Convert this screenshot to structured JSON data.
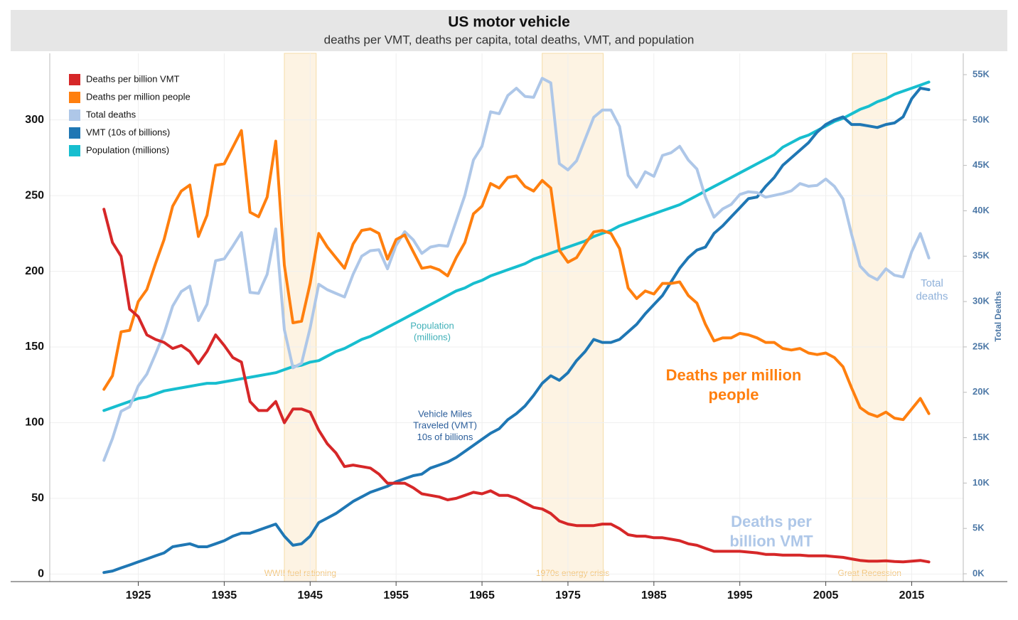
{
  "chart_data": {
    "type": "line",
    "title": "US motor vehicle",
    "subtitle": "deaths per VMT, deaths per capita, total deaths, VMT, and population",
    "y2_label": "Total Deaths",
    "x": [
      1921,
      1922,
      1923,
      1924,
      1925,
      1926,
      1927,
      1928,
      1929,
      1930,
      1931,
      1932,
      1933,
      1934,
      1935,
      1936,
      1937,
      1938,
      1939,
      1940,
      1941,
      1942,
      1943,
      1944,
      1945,
      1946,
      1947,
      1948,
      1949,
      1950,
      1951,
      1952,
      1953,
      1954,
      1955,
      1956,
      1957,
      1958,
      1959,
      1960,
      1961,
      1962,
      1963,
      1964,
      1965,
      1966,
      1967,
      1968,
      1969,
      1970,
      1971,
      1972,
      1973,
      1974,
      1975,
      1976,
      1977,
      1978,
      1979,
      1980,
      1981,
      1982,
      1983,
      1984,
      1985,
      1986,
      1987,
      1988,
      1989,
      1990,
      1991,
      1992,
      1993,
      1994,
      1995,
      1996,
      1997,
      1998,
      1999,
      2000,
      2001,
      2002,
      2003,
      2004,
      2005,
      2006,
      2007,
      2008,
      2009,
      2010,
      2011,
      2012,
      2013,
      2014,
      2015,
      2016,
      2017
    ],
    "xlim": [
      1914.7,
      2021
    ],
    "xticks": [
      1925,
      1935,
      1945,
      1955,
      1965,
      1975,
      1985,
      1995,
      2005,
      2015
    ],
    "ylim": [
      -5,
      344
    ],
    "yticks": [
      0,
      50,
      100,
      150,
      200,
      250,
      300
    ],
    "y2lim": [
      -860,
      57350
    ],
    "y2ticks": [
      {
        "value": 0,
        "label": "0K"
      },
      {
        "value": 5000,
        "label": "5K"
      },
      {
        "value": 10000,
        "label": "10K"
      },
      {
        "value": 15000,
        "label": "15K"
      },
      {
        "value": 20000,
        "label": "20K"
      },
      {
        "value": 25000,
        "label": "25K"
      },
      {
        "value": 30000,
        "label": "30K"
      },
      {
        "value": 35000,
        "label": "35K"
      },
      {
        "value": 40000,
        "label": "40K"
      },
      {
        "value": 45000,
        "label": "45K"
      },
      {
        "value": 50000,
        "label": "50K"
      },
      {
        "value": 55000,
        "label": "55K"
      }
    ],
    "grid": true,
    "legend": "upper left",
    "series": [
      {
        "name": "Deaths per billion VMT",
        "color": "#d62728",
        "values": [
          241,
          219,
          210,
          175,
          170,
          158,
          155,
          153,
          149,
          151,
          147,
          139,
          147,
          158,
          151,
          143,
          140,
          114,
          108,
          108,
          114,
          100,
          109,
          109,
          107,
          95,
          86,
          80,
          71,
          72,
          71,
          70,
          66,
          60,
          60,
          60,
          57,
          53,
          52,
          51,
          49,
          50,
          52,
          54,
          53,
          55,
          52,
          52,
          50,
          47,
          44,
          43,
          40,
          35,
          33,
          32,
          32,
          32,
          33,
          33,
          30,
          26,
          25,
          25,
          24,
          24,
          23,
          22,
          20,
          19,
          17,
          15,
          15,
          15,
          15,
          14.5,
          14,
          13,
          13,
          12.5,
          12.5,
          12.5,
          12,
          12,
          12,
          11.5,
          11,
          10,
          9,
          8.5,
          8.5,
          8.7,
          8.3,
          8,
          8.5,
          9,
          8
        ]
      },
      {
        "name": "Deaths per million people",
        "color": "#ff7f0e",
        "values": [
          122,
          131,
          160,
          161,
          180,
          188,
          205,
          221,
          243,
          253,
          257,
          223,
          237,
          270,
          271,
          282,
          293,
          239,
          236,
          249,
          286,
          204,
          166,
          167,
          192,
          225,
          216,
          209,
          202,
          218,
          227,
          228,
          225,
          208,
          221,
          224,
          213,
          202,
          203,
          201,
          197,
          209,
          219,
          238,
          243,
          258,
          255,
          262,
          263,
          256,
          253,
          260,
          255,
          214,
          206,
          209,
          218,
          226,
          227,
          225,
          215,
          189,
          182,
          187,
          185,
          192,
          192,
          193,
          184,
          179,
          165,
          154,
          156,
          156,
          159,
          158,
          156,
          153,
          153,
          149,
          148,
          149,
          146,
          145,
          146,
          143,
          137,
          123,
          110,
          106,
          104,
          107,
          103,
          102,
          109,
          116,
          106
        ]
      },
      {
        "name": "Total deaths",
        "color": "#aec7e8",
        "axis": "y2",
        "values": [
          12500,
          14900,
          17900,
          18400,
          20700,
          22000,
          24200,
          26500,
          29500,
          31100,
          31700,
          27900,
          29700,
          34500,
          34700,
          36100,
          37600,
          31000,
          30900,
          33000,
          38000,
          26900,
          22700,
          23200,
          27100,
          31900,
          31300,
          30900,
          30500,
          33000,
          35000,
          35600,
          35700,
          33600,
          36200,
          37700,
          36800,
          35300,
          36000,
          36200,
          36100,
          38900,
          41700,
          45600,
          47100,
          50900,
          50700,
          52700,
          53500,
          52600,
          52500,
          54600,
          54100,
          45200,
          44500,
          45500,
          47900,
          50300,
          51100,
          51100,
          49300,
          43900,
          42600,
          44300,
          43800,
          46100,
          46400,
          47100,
          45600,
          44600,
          41500,
          39300,
          40200,
          40700,
          41800,
          42100,
          42000,
          41500,
          41700,
          41900,
          42200,
          43000,
          42700,
          42800,
          43500,
          42700,
          41300,
          37400,
          33900,
          32900,
          32400,
          33600,
          32900,
          32700,
          35500,
          37500,
          34800
        ]
      },
      {
        "name": "VMT (10s of billions)",
        "color": "#1f77b4",
        "values": [
          1,
          2,
          4,
          6,
          8,
          10,
          12,
          14,
          18,
          19,
          20,
          18,
          18,
          20,
          22,
          25,
          27,
          27,
          29,
          31,
          33,
          25,
          19,
          20,
          25,
          34,
          37,
          40,
          44,
          48,
          51,
          54,
          56,
          58,
          61,
          63,
          65,
          66,
          70,
          72,
          74,
          77,
          81,
          85,
          89,
          93,
          96,
          102,
          106,
          111,
          118,
          126,
          131,
          128,
          133,
          141,
          147,
          155,
          153,
          153,
          155,
          160,
          165,
          172,
          178,
          184,
          193,
          202,
          209,
          214,
          216,
          225,
          230,
          236,
          242,
          248,
          249,
          256,
          262,
          270,
          275,
          280,
          285,
          292,
          297,
          300,
          302,
          297,
          297,
          296,
          295,
          297,
          298,
          302,
          314,
          321,
          320
        ]
      },
      {
        "name": "Population (millions)",
        "color": "#17becf",
        "values": [
          108,
          110,
          112,
          114,
          116,
          117,
          119,
          121,
          122,
          123,
          124,
          125,
          126,
          126,
          127,
          128,
          129,
          130,
          131,
          132,
          133,
          135,
          137,
          138,
          140,
          141,
          144,
          147,
          149,
          152,
          155,
          157,
          160,
          163,
          166,
          169,
          172,
          175,
          178,
          181,
          184,
          187,
          189,
          192,
          194,
          197,
          199,
          201,
          203,
          205,
          208,
          210,
          212,
          214,
          216,
          218,
          220,
          223,
          225,
          227,
          230,
          232,
          234,
          236,
          238,
          240,
          242,
          244,
          247,
          250,
          253,
          256,
          259,
          262,
          265,
          268,
          271,
          274,
          277,
          282,
          285,
          288,
          290,
          293,
          296,
          299,
          301,
          304,
          307,
          309,
          312,
          314,
          317,
          319,
          321,
          323,
          325
        ]
      }
    ],
    "inline_labels": [
      {
        "lines": [
          "Total",
          "deaths"
        ]
      },
      {
        "lines": [
          "Deaths per million",
          "people"
        ]
      },
      {
        "lines": [
          "Deaths per",
          "billion VMT"
        ]
      },
      {
        "lines": [
          "Vehicle Miles",
          "Traveled (VMT)",
          "10s of billions"
        ]
      },
      {
        "lines": [
          "Population",
          "(millions)"
        ]
      }
    ],
    "shaded_periods": [
      {
        "label": "WWII fuel rationing",
        "start": 1942,
        "end": 1945.7
      },
      {
        "label": "1970s energy crisis",
        "start": 1972,
        "end": 1979.1
      },
      {
        "label": "Great Recession",
        "start": 2008.1,
        "end": 2012.1
      }
    ]
  }
}
